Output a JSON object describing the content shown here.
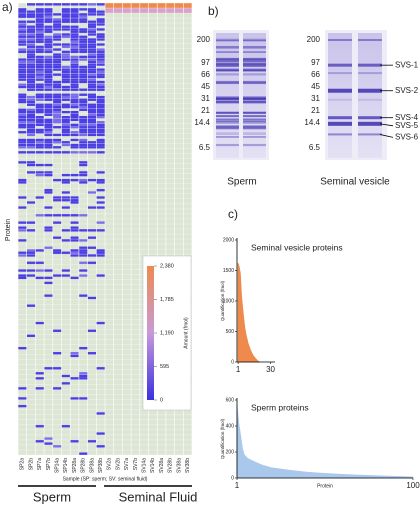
{
  "panel_a": {
    "label": "a)",
    "y_label": "Protein",
    "columns": [
      "SP2a",
      "SP2b",
      "SP7a",
      "SP7b",
      "SP14a",
      "SP14b",
      "SP28a",
      "SP28b",
      "SP38a",
      "SP38b",
      "SV2a",
      "SV2b",
      "SV7a",
      "SV7b",
      "SV14a",
      "SV14b",
      "SV28a",
      "SV28b",
      "SV38a",
      "SV38b"
    ],
    "x_label": "Sample (SP: sperm; SV: seminal fluid)",
    "groups": [
      "Sperm",
      "Seminal Fluid"
    ],
    "colorbar": {
      "title": "Amount (fmol)",
      "lim": [
        0,
        2380
      ],
      "ticks": [
        0,
        {
          "value": 595,
          "label": "595"
        },
        {
          "value": 1190,
          "label": "1,190"
        },
        {
          "value": 1785,
          "label": "1,785"
        },
        {
          "value": 2380,
          "label": "2,380"
        }
      ]
    }
  },
  "panel_b": {
    "label": "b)",
    "markers_left": [
      "200",
      "97",
      "66",
      "45",
      "31",
      "21",
      "14.4",
      "6.5"
    ],
    "markers_right": [
      "200",
      "97",
      "66",
      "45",
      "31",
      "21",
      "14.4",
      "6.5"
    ],
    "lanes": [
      "Sperm",
      "Seminal vesicle"
    ],
    "bands": [
      "SVS-1",
      "SVS-2",
      "SVS-4",
      "SVS-5",
      "SVS-6"
    ]
  },
  "panel_c": {
    "label": "c)"
  },
  "chart_data": [
    {
      "type": "area",
      "title": "Seminal vesicle proteins",
      "y_label": "Quantification (fmol)",
      "x": [
        1,
        2,
        3,
        4,
        5,
        6,
        7,
        8,
        9,
        10,
        12,
        14,
        16,
        18,
        20
      ],
      "values": [
        1620,
        1560,
        1450,
        1100,
        900,
        720,
        560,
        460,
        380,
        300,
        200,
        120,
        70,
        30,
        0
      ],
      "color": "#ee8a4e",
      "xlim": [
        0,
        34
      ],
      "xticks": [
        1,
        30
      ],
      "ylim": [
        0,
        2000
      ],
      "yticks": [
        0,
        500,
        1000,
        1500,
        2000
      ]
    },
    {
      "type": "area",
      "title": "Sperm proteins",
      "y_label": "Quantification (fmol)",
      "x_label": "Protein",
      "x": [
        1,
        2,
        3,
        4,
        5,
        7,
        10,
        15,
        20,
        30,
        40,
        50,
        60,
        70,
        80,
        90,
        100
      ],
      "values": [
        560,
        420,
        330,
        230,
        180,
        150,
        130,
        100,
        80,
        60,
        45,
        35,
        28,
        22,
        17,
        12,
        8
      ],
      "color": "#a9c8ec",
      "xlim": [
        1,
        100
      ],
      "xticks": [
        1,
        100
      ],
      "ylim": [
        0,
        600
      ],
      "yticks": [
        0,
        200,
        400,
        600
      ]
    }
  ]
}
